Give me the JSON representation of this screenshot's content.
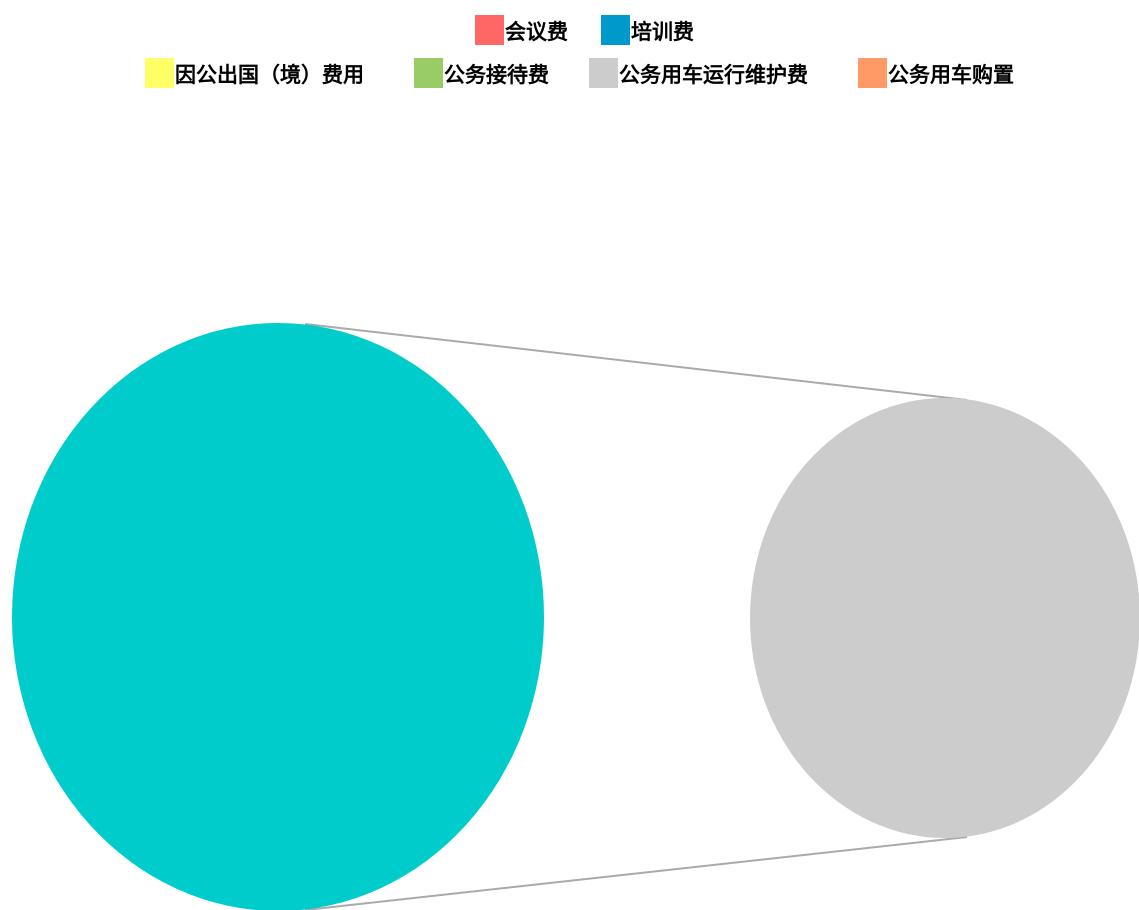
{
  "chart_data": {
    "type": "pie",
    "subtype": "pie-of-pie",
    "legend": {
      "placement": "top",
      "entries": [
        {
          "label": "会议费",
          "color": "#FF6666"
        },
        {
          "label": "培训费",
          "color": "#0099CC"
        },
        {
          "label": "因公出国（境）费用",
          "color": "#FFFF66"
        },
        {
          "label": "公务接待费",
          "color": "#99CC66"
        },
        {
          "label": "公务用车运行维护费",
          "color": "#CCCCCC"
        },
        {
          "label": "公务用车购置",
          "color": "#FF9966"
        }
      ]
    },
    "series": [
      {
        "slices": [
          {
            "label": "会议费",
            "value": 0
          },
          {
            "label": "培训费",
            "value": 0
          },
          {
            "label": "因公出国（境）费用",
            "value": 0
          },
          {
            "label": "公务接待费",
            "value": 0
          },
          {
            "label": "公务用车运行维护费",
            "value": 100
          },
          {
            "label": "公务用车购置",
            "value": 0
          }
        ]
      }
    ],
    "main_pie": {
      "color": "#00CCCC",
      "value": 100
    },
    "secondary_pie": {
      "color": "#CCCCCC",
      "value": 100
    },
    "connector_color": "#AAAAAA"
  }
}
